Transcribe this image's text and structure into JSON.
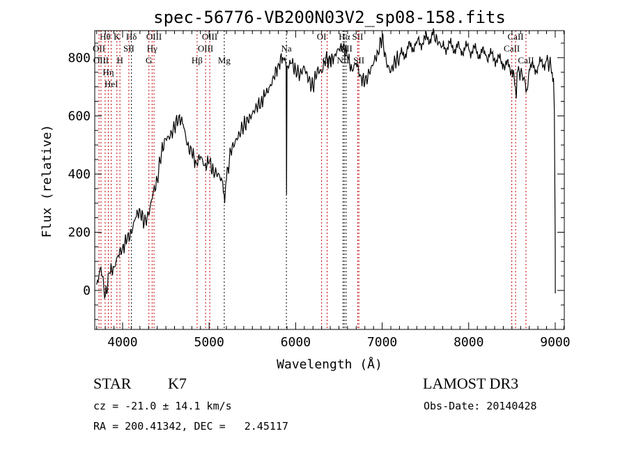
{
  "chart_data": {
    "type": "line",
    "title": "spec-56776-VB200N03V2_sp08-158.fits",
    "xlabel": "Wavelength (Å)",
    "ylabel": "Flux (relative)",
    "xlim": [
      3678,
      9105
    ],
    "ylim": [
      -134,
      893
    ],
    "xticks": [
      4000,
      5000,
      6000,
      7000,
      8000,
      9000
    ],
    "yticks": [
      0,
      200,
      400,
      600,
      800
    ],
    "grid": false,
    "series": [
      {
        "name": "spectrum",
        "x": [
          3700,
          3750,
          3800,
          3850,
          3900,
          3950,
          4000,
          4050,
          4100,
          4150,
          4200,
          4250,
          4300,
          4350,
          4400,
          4450,
          4500,
          4550,
          4600,
          4650,
          4700,
          4750,
          4800,
          4850,
          4900,
          4950,
          5000,
          5050,
          5100,
          5150,
          5180,
          5200,
          5250,
          5300,
          5350,
          5400,
          5450,
          5500,
          5550,
          5600,
          5650,
          5700,
          5750,
          5800,
          5850,
          5890,
          5895,
          5900,
          5950,
          6000,
          6050,
          6100,
          6150,
          6200,
          6250,
          6300,
          6350,
          6400,
          6450,
          6500,
          6550,
          6600,
          6650,
          6700,
          6750,
          6800,
          6850,
          6900,
          6950,
          7000,
          7050,
          7100,
          7150,
          7200,
          7300,
          7400,
          7500,
          7600,
          7650,
          7700,
          7800,
          7900,
          8000,
          8100,
          8200,
          8300,
          8400,
          8500,
          8540,
          8550,
          8560,
          8600,
          8650,
          8662,
          8700,
          8800,
          8900,
          8950,
          8980,
          8990,
          9000,
          9001
        ],
        "y": [
          20,
          80,
          -20,
          60,
          80,
          120,
          150,
          170,
          200,
          250,
          280,
          230,
          260,
          330,
          380,
          480,
          520,
          530,
          560,
          600,
          570,
          500,
          470,
          440,
          460,
          430,
          440,
          410,
          400,
          380,
          300,
          380,
          480,
          510,
          540,
          570,
          580,
          610,
          630,
          650,
          670,
          700,
          730,
          780,
          800,
          770,
          330,
          770,
          780,
          760,
          740,
          770,
          720,
          700,
          760,
          750,
          800,
          780,
          810,
          830,
          840,
          800,
          760,
          780,
          740,
          710,
          750,
          780,
          820,
          870,
          780,
          750,
          790,
          800,
          830,
          850,
          860,
          880,
          850,
          840,
          840,
          830,
          830,
          820,
          810,
          800,
          780,
          760,
          700,
          660,
          750,
          750,
          720,
          680,
          760,
          770,
          790,
          770,
          730,
          620,
          150,
          -10
        ]
      }
    ],
    "lines": [
      {
        "label": "OII",
        "wave": 3727,
        "row": 2,
        "color": "#c00000"
      },
      {
        "label": "Hθ",
        "wave": 3798,
        "row": 1,
        "color": "#c00000"
      },
      {
        "label": "OIII",
        "wave": 3750,
        "row": 3,
        "color": "#c00000"
      },
      {
        "label": "Hη",
        "wave": 3835,
        "row": 3,
        "color": "#c00000"
      },
      {
        "label": "HeI",
        "wave": 3869,
        "row": 2,
        "color": "#c00000"
      },
      {
        "label": "K",
        "wave": 3934,
        "row": 1,
        "color": "#c00000"
      },
      {
        "label": "H",
        "wave": 3969,
        "row": 3,
        "color": "#c00000"
      },
      {
        "label": "SII",
        "wave": 4072,
        "row": 2,
        "color": "#c00000"
      },
      {
        "label": "Hδ",
        "wave": 4102,
        "row": 1,
        "color": "#000000"
      },
      {
        "label": "G",
        "wave": 4304,
        "row": 3,
        "color": "#c00000"
      },
      {
        "label": "Hγ",
        "wave": 4341,
        "row": 2,
        "color": "#c00000"
      },
      {
        "label": "OIII",
        "wave": 4363,
        "row": 1,
        "color": "#c00000"
      },
      {
        "label": "Hβ",
        "wave": 4861,
        "row": 3,
        "color": "#c00000"
      },
      {
        "label": "OIII",
        "wave": 4959,
        "row": 2,
        "color": "#c00000"
      },
      {
        "label": "OIII",
        "wave": 5007,
        "row": 1,
        "color": "#c00000"
      },
      {
        "label": "Mg",
        "wave": 5175,
        "row": 3,
        "color": "#000000"
      },
      {
        "label": "Na",
        "wave": 5893,
        "row": 2,
        "color": "#000000"
      },
      {
        "label": "OI",
        "wave": 6300,
        "row": 1,
        "color": "#c00000"
      },
      {
        "label": "OI",
        "wave": 6364,
        "row": 3,
        "color": "#c00000"
      },
      {
        "label": "NII",
        "wave": 6548,
        "row": 3,
        "color": "#000000"
      },
      {
        "label": "Hα",
        "wave": 6563,
        "row": 1,
        "color": "#000000"
      },
      {
        "label": "NII",
        "wave": 6583,
        "row": 2,
        "color": "#000000"
      },
      {
        "label": "SII",
        "wave": 6717,
        "row": 1,
        "color": "#c00000"
      },
      {
        "label": "SII",
        "wave": 6731,
        "row": 3,
        "color": "#c00000"
      },
      {
        "label": "CaII",
        "wave": 8498,
        "row": 2,
        "color": "#c00000"
      },
      {
        "label": "CaII",
        "wave": 8542,
        "row": 1,
        "color": "#c00000"
      },
      {
        "label": "CaII",
        "wave": 8662,
        "row": 3,
        "color": "#c00000"
      }
    ]
  },
  "info": {
    "class": "STAR",
    "subclass": "K7",
    "survey": "LAMOST DR3",
    "cz": "cz = -21.0 ± 14.1 km/s",
    "obs_date": "Obs-Date: 20140428",
    "radec": "RA = 200.41342, DEC =   2.45117"
  }
}
